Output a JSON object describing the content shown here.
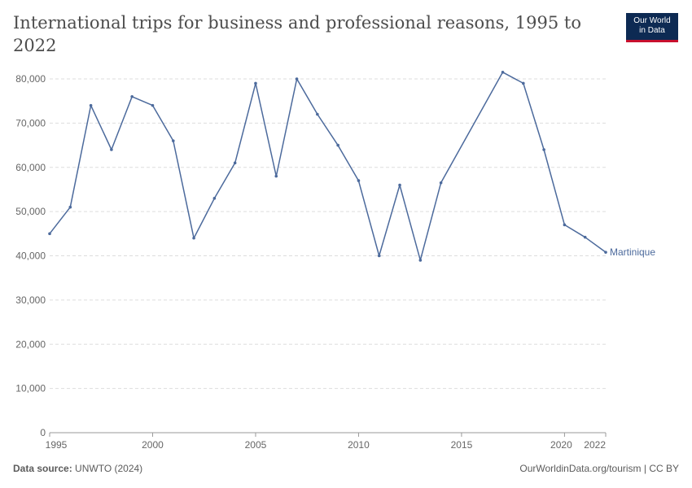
{
  "header": {
    "title": "International trips for business and professional reasons, 1995 to 2022"
  },
  "logo": {
    "line1": "Our World",
    "line2": "in Data"
  },
  "footer": {
    "source_label": "Data source:",
    "source_value": "UNWTO (2024)",
    "credit": "OurWorldinData.org/tourism | CC BY"
  },
  "colors": {
    "series": "#4c6a9c",
    "grid": "#dddddd",
    "axis": "#666666",
    "logo_bg": "#0d2a53",
    "logo_accent": "#c8102e"
  },
  "chart_data": {
    "type": "line",
    "title": "International trips for business and professional reasons, 1995 to 2022",
    "xlabel": "",
    "ylabel": "",
    "xlim": [
      1995,
      2022
    ],
    "ylim": [
      0,
      80000
    ],
    "y_ticks": [
      0,
      10000,
      20000,
      30000,
      40000,
      50000,
      60000,
      70000,
      80000
    ],
    "y_tick_labels": [
      "0",
      "10,000",
      "20,000",
      "30,000",
      "40,000",
      "50,000",
      "60,000",
      "70,000",
      "80,000"
    ],
    "x_ticks": [
      1995,
      2000,
      2005,
      2010,
      2015,
      2020,
      2022
    ],
    "x_tick_labels": [
      "1995",
      "2000",
      "2005",
      "2010",
      "2015",
      "2020",
      "2022"
    ],
    "grid": true,
    "series": [
      {
        "name": "Martinique",
        "points": [
          [
            1995,
            45000
          ],
          [
            1996,
            51000
          ],
          [
            1997,
            74000
          ],
          [
            1998,
            64000
          ],
          [
            1999,
            76000
          ],
          [
            2000,
            74000
          ],
          [
            2001,
            66000
          ],
          [
            2002,
            44000
          ],
          [
            2003,
            53000
          ],
          [
            2004,
            61000
          ],
          [
            2005,
            79000
          ],
          [
            2006,
            58000
          ],
          [
            2007,
            80000
          ],
          [
            2008,
            72000
          ],
          [
            2009,
            65000
          ],
          [
            2010,
            57000
          ],
          [
            2011,
            40000
          ],
          [
            2012,
            56000
          ],
          [
            2013,
            39000
          ],
          [
            2014,
            56500
          ],
          [
            2017,
            81500
          ],
          [
            2018,
            79000
          ],
          [
            2019,
            64000
          ],
          [
            2020,
            47000
          ],
          [
            2021,
            44200
          ],
          [
            2022,
            40800
          ]
        ]
      }
    ]
  }
}
